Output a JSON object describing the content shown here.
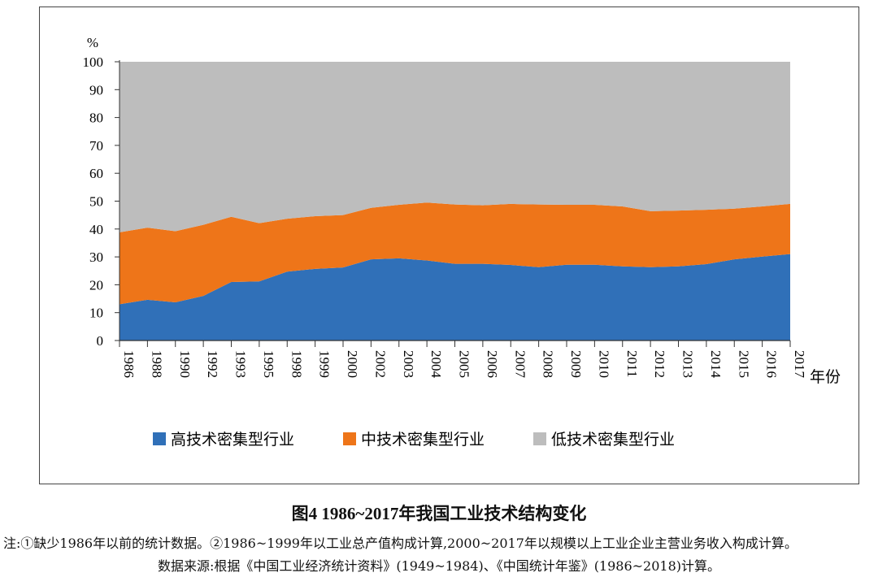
{
  "chart_data": {
    "type": "area",
    "stacked": true,
    "title": "图4 1986~2017年我国工业技术结构变化",
    "xlabel": "年份",
    "ylabel": "%",
    "ylim": [
      0,
      100
    ],
    "yticks": [
      0,
      10,
      20,
      30,
      40,
      50,
      60,
      70,
      80,
      90,
      100
    ],
    "categories": [
      "1986",
      "1988",
      "1990",
      "1992",
      "1993",
      "1995",
      "1998",
      "1999",
      "2000",
      "2002",
      "2003",
      "2004",
      "2005",
      "2006",
      "2007",
      "2008",
      "2009",
      "2010",
      "2011",
      "2012",
      "2013",
      "2014",
      "2015",
      "2016",
      "2017"
    ],
    "series": [
      {
        "name": "高技术密集型行业",
        "color": "#3070B8",
        "values": [
          13.0,
          14.6,
          13.7,
          16.0,
          21.0,
          21.2,
          24.7,
          25.7,
          26.2,
          29.1,
          29.5,
          28.7,
          27.5,
          27.5,
          27.1,
          26.3,
          27.2,
          27.2,
          26.6,
          26.3,
          26.6,
          27.4,
          29.1,
          30.1,
          31.0
        ]
      },
      {
        "name": "中技术密集型行业",
        "color": "#EE7519",
        "values": [
          25.8,
          25.9,
          25.5,
          25.5,
          23.4,
          20.9,
          19.0,
          18.9,
          18.8,
          18.5,
          19.2,
          20.8,
          21.3,
          21.0,
          21.9,
          22.5,
          21.5,
          21.5,
          21.5,
          20.1,
          20.0,
          19.5,
          18.2,
          18.0,
          18.0
        ]
      },
      {
        "name": "低技术密集型行业",
        "color": "#BDBDBD",
        "values": [
          61.2,
          59.5,
          60.8,
          58.5,
          55.6,
          57.9,
          56.3,
          55.4,
          55.0,
          52.4,
          51.3,
          50.5,
          51.2,
          51.5,
          51.0,
          51.2,
          51.3,
          51.3,
          51.9,
          53.6,
          53.4,
          53.1,
          52.7,
          51.9,
          51.0
        ]
      }
    ],
    "legend_position": "bottom",
    "grid": false
  },
  "caption": {
    "title": "图4 1986~2017年我国工业技术结构变化",
    "note": "注:①缺少1986年以前的统计数据。②1986~1999年以工业总产值构成计算,2000~2017年以规模以上工业企业主营业务收入构成计算。",
    "source": "数据来源:根据《中国工业经济统计资料》(1949~1984)、《中国统计年鉴》(1986~2018)计算。"
  }
}
